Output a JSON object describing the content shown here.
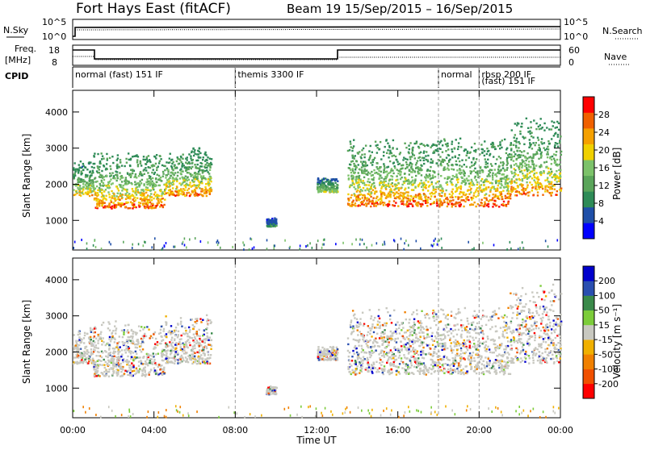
{
  "header": {
    "station": "Fort Hays East (fitACF)",
    "beam_info": "Beam 19   15/Sep/2015 – 16/Sep/2015"
  },
  "top_panels": {
    "nsky_label": "N.Sky",
    "nsearch_label": "N.Search",
    "noise_ticks_left": [
      "10^5",
      "10^0"
    ],
    "noise_ticks_right": [
      "10^5",
      "10^0"
    ],
    "freq_label": [
      "Freq.",
      "[MHz]"
    ],
    "freq_ticks": [
      "18",
      "8"
    ],
    "nave_label": "Nave",
    "nave_ticks": [
      "60",
      "0"
    ],
    "cpid_label": "CPID"
  },
  "cpid_segments": [
    {
      "label": "normal (fast) 151 IF",
      "start": 0,
      "end": 8
    },
    {
      "label": "themis 3300 IF",
      "start": 8,
      "end": 18
    },
    {
      "label": "normal",
      "start": 18,
      "end": 20
    },
    {
      "label": "rbsp 200 IF",
      "start": 20,
      "end": 24
    },
    {
      "label": "(fast) 151 IF",
      "start": 20,
      "end": 24
    }
  ],
  "colors": {
    "power_scale": [
      "#0000ff",
      "#1f4fa8",
      "#2e8b57",
      "#5aa55a",
      "#7cc26a",
      "#f0d000",
      "#f5a000",
      "#f06000",
      "#ff0000"
    ],
    "velocity_scale": [
      "#0000cc",
      "#2a4fb0",
      "#3a8a4a",
      "#7ccc3a",
      "#c8c8c0",
      "#f0b000",
      "#f08000",
      "#f05000",
      "#ff0000"
    ],
    "grid_dash": "#a0a0a0"
  },
  "chart_data": [
    {
      "type": "heatmap",
      "ylabel": "Slant Range [km]",
      "xlabel": "Time UT",
      "x_ticks": [
        "00:00",
        "04:00",
        "08:00",
        "12:00",
        "16:00",
        "20:00",
        "00:00"
      ],
      "x_tick_values": [
        0,
        4,
        8,
        12,
        16,
        20,
        24
      ],
      "xlim": [
        0,
        24
      ],
      "ylim": [
        180,
        4600
      ],
      "y_ticks": [
        1000,
        2000,
        3000,
        4000
      ],
      "colorbar": {
        "label": "Power [dB]",
        "ticks": [
          "4",
          "8",
          "12",
          "16",
          "20",
          "24",
          "28"
        ],
        "range": [
          0,
          30
        ]
      },
      "dashed_time_lines": [
        8,
        18,
        20
      ],
      "scatter_regions": [
        {
          "start": 0.0,
          "end": 1.0,
          "range_low": 1700,
          "range_high": 2700,
          "peak_power": 22
        },
        {
          "start": 1.0,
          "end": 4.5,
          "range_low": 1350,
          "range_high": 2900,
          "peak_power": 26
        },
        {
          "start": 4.5,
          "end": 6.8,
          "range_low": 1700,
          "range_high": 3050,
          "peak_power": 24
        },
        {
          "start": 9.5,
          "end": 10.0,
          "range_low": 850,
          "range_high": 1100,
          "peak_power": 10
        },
        {
          "start": 12.0,
          "end": 13.0,
          "range_low": 1800,
          "range_high": 2200,
          "peak_power": 18
        },
        {
          "start": 13.5,
          "end": 21.5,
          "range_low": 1400,
          "range_high": 3300,
          "peak_power": 26
        },
        {
          "start": 21.5,
          "end": 24.0,
          "range_low": 1700,
          "range_high": 3900,
          "peak_power": 24
        }
      ]
    },
    {
      "type": "heatmap",
      "ylabel": "Slant Range [km]",
      "xlabel": "Time UT",
      "x_ticks": [
        "00:00",
        "04:00",
        "08:00",
        "12:00",
        "16:00",
        "20:00",
        "00:00"
      ],
      "x_tick_values": [
        0,
        4,
        8,
        12,
        16,
        20,
        24
      ],
      "xlim": [
        0,
        24
      ],
      "ylim": [
        180,
        4600
      ],
      "y_ticks": [
        1000,
        2000,
        3000,
        4000
      ],
      "colorbar": {
        "label": "Velocity [m s⁻¹]",
        "ticks": [
          "200",
          "100",
          "50",
          "15",
          "-15",
          "-50",
          "-100",
          "-200"
        ]
      },
      "dashed_time_lines": [
        8,
        18,
        20
      ],
      "dominant_value": "ground scatter (grey, |v| < 15)"
    }
  ]
}
